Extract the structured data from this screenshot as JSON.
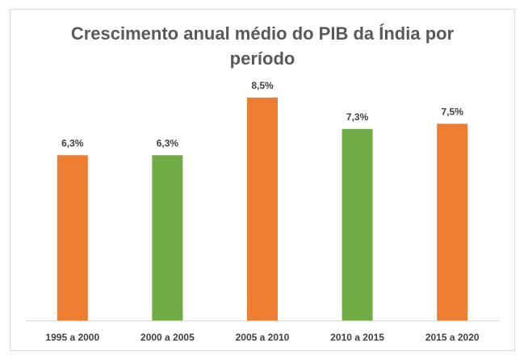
{
  "chart_data": {
    "type": "bar",
    "title_lines": [
      "Crescimento anual médio do PIB da Índia por",
      "período"
    ],
    "categories": [
      "1995 a 2000",
      "2000 a 2005",
      "2005 a 2010",
      "2010 a 2015",
      "2015 a 2020"
    ],
    "values": [
      6.3,
      6.3,
      8.5,
      7.3,
      7.5
    ],
    "data_labels": [
      "6,3%",
      "6,3%",
      "8,5%",
      "7,3%",
      "7,5%"
    ],
    "bar_colors": [
      "#ed7d31",
      "#70ad47",
      "#ed7d31",
      "#70ad47",
      "#ed7d31"
    ],
    "xlabel": "",
    "ylabel": "",
    "ylim": [
      0,
      10
    ],
    "grid": false,
    "legend": "none"
  },
  "colors": {
    "orange": "#ed7d31",
    "green": "#70ad47",
    "axis": "#d9d9d9",
    "title": "#595959"
  }
}
